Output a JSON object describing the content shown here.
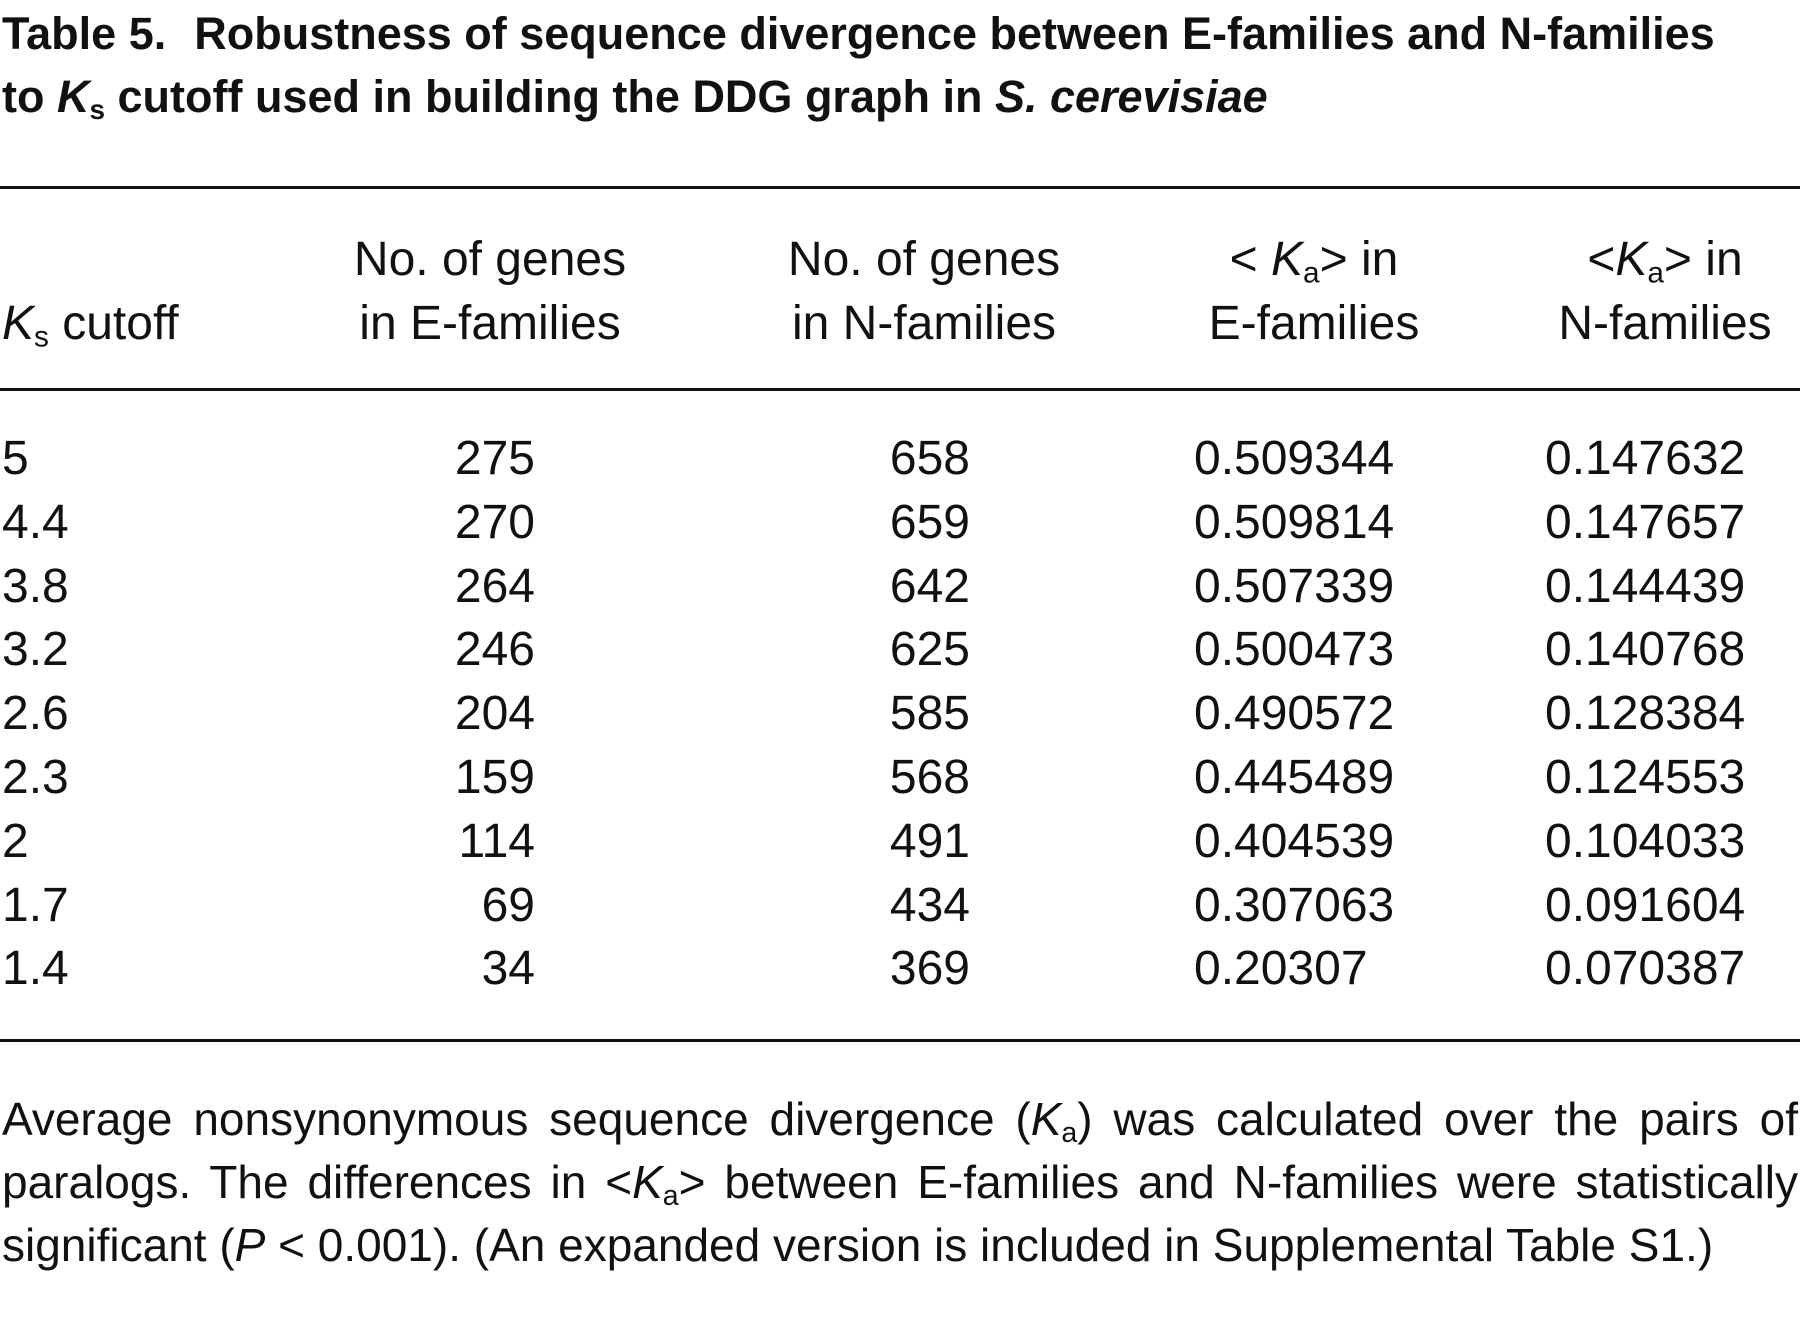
{
  "table": {
    "label": "Table 5.",
    "title": [
      "Robustness of sequence divergence between E-families and N-families to ",
      "K",
      "s",
      " cutoff used in building the DDG graph in ",
      "S. cerevisiae"
    ],
    "headers": [
      [
        "K",
        "s",
        " cutoff"
      ],
      [
        "No. of genes",
        "in E-families"
      ],
      [
        "No. of genes",
        "in N-families"
      ],
      [
        "< ",
        "K",
        "a",
        "> in",
        "E-families"
      ],
      [
        "<",
        "K",
        "a",
        "> in",
        "N-families"
      ]
    ],
    "rows": [
      [
        "5",
        "275",
        "658",
        "0.509344",
        "0.147632"
      ],
      [
        "4.4",
        "270",
        "659",
        "0.509814",
        "0.147657"
      ],
      [
        "3.8",
        "264",
        "642",
        "0.507339",
        "0.144439"
      ],
      [
        "3.2",
        "246",
        "625",
        "0.500473",
        "0.140768"
      ],
      [
        "2.6",
        "204",
        "585",
        "0.490572",
        "0.128384"
      ],
      [
        "2.3",
        "159",
        "568",
        "0.445489",
        "0.124553"
      ],
      [
        "2",
        "114",
        "491",
        "0.404539",
        "0.104033"
      ],
      [
        "1.7",
        "69",
        "434",
        "0.307063",
        "0.091604"
      ],
      [
        "1.4",
        "34",
        "369",
        "0.20307",
        "0.070387"
      ]
    ],
    "footnote": [
      "Average nonsynonymous sequence divergence (",
      "K",
      "a",
      ") was calculated over the pairs of paralogs. The differences in <",
      "K",
      "a",
      "> between E-families and N-families were statistically significant (",
      "P",
      " < 0.001). (An expanded version is included in Supplemental Table S1.)"
    ]
  }
}
